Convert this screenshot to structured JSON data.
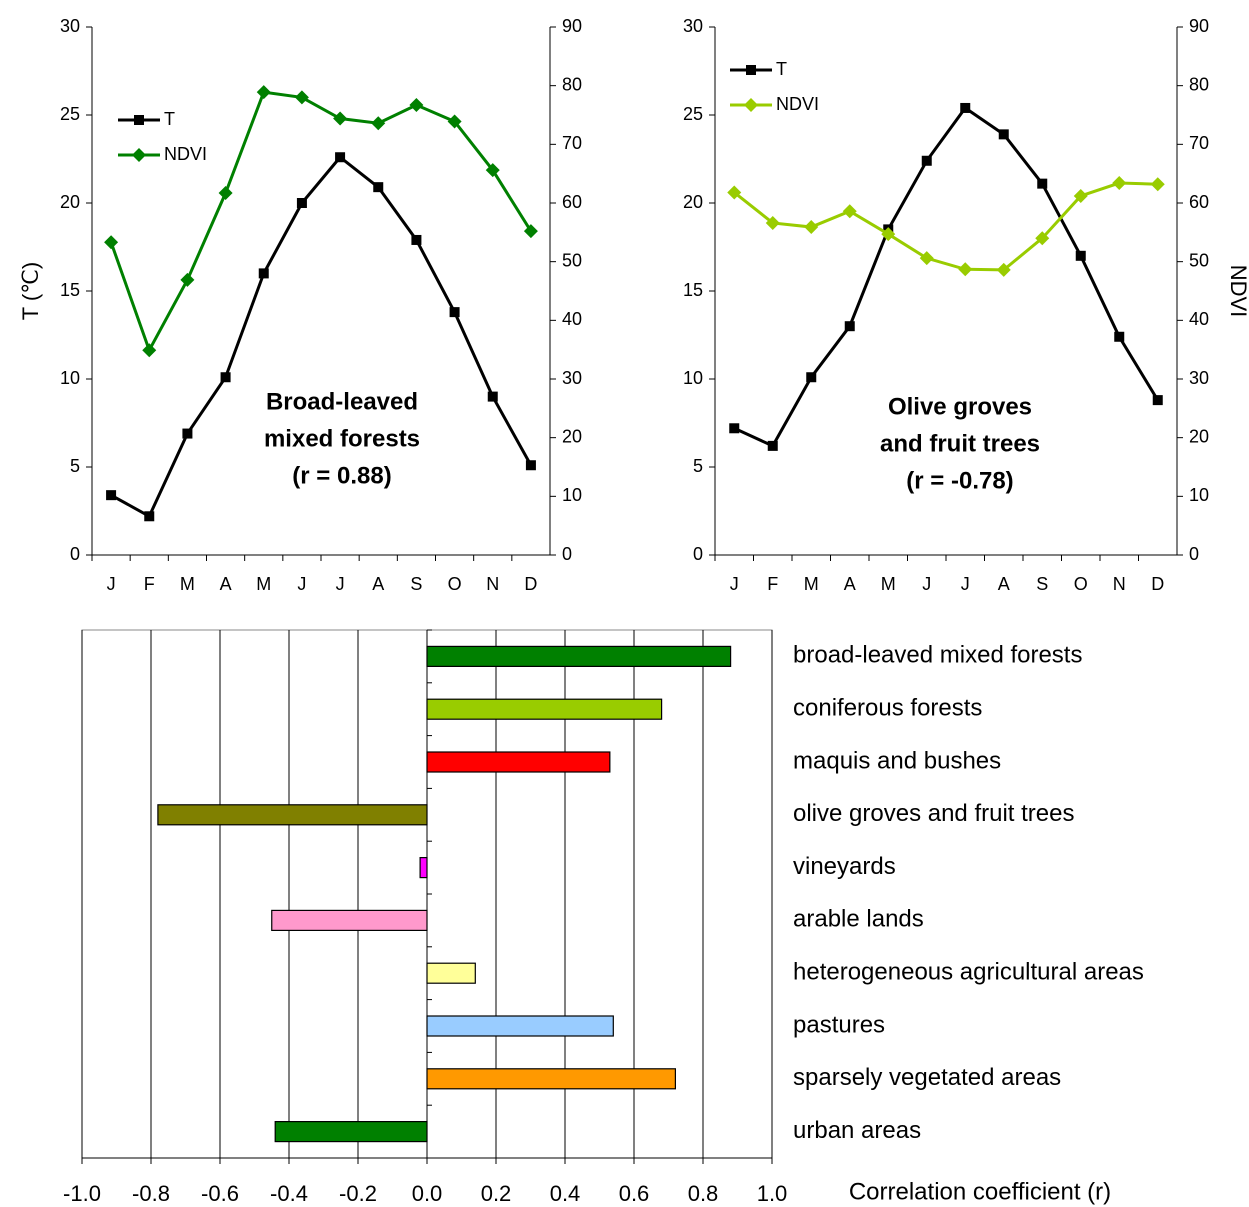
{
  "chart_data": [
    {
      "type": "line",
      "ylabel": "T (℃)",
      "annotation": [
        "Broad-leaved",
        "mixed forests",
        "(r = 0.88)"
      ],
      "categories": [
        "J",
        "F",
        "M",
        "A",
        "M",
        "J",
        "J",
        "A",
        "S",
        "O",
        "N",
        "D"
      ],
      "series": [
        {
          "name": "T",
          "color": "#000000",
          "marker": "square",
          "values": [
            3.4,
            2.2,
            6.9,
            10.1,
            16.0,
            20.0,
            22.6,
            20.9,
            17.9,
            13.8,
            9.0,
            5.1
          ]
        },
        {
          "name": "NDVI",
          "color": "#008000",
          "marker": "diamond",
          "axis": "y2",
          "values": [
            53.3,
            34.9,
            46.9,
            61.7,
            78.9,
            78.0,
            74.4,
            73.6,
            76.7,
            73.9,
            65.6,
            55.2
          ]
        }
      ],
      "ylim": [
        0,
        30
      ],
      "yticks": [
        0,
        5,
        10,
        15,
        20,
        25,
        30
      ],
      "y2lim": [
        0,
        90
      ],
      "y2ticks": [
        0,
        10,
        20,
        30,
        40,
        50,
        60,
        70,
        80,
        90
      ]
    },
    {
      "type": "line",
      "y2label": "NDVI",
      "annotation": [
        "Olive groves",
        "and fruit trees",
        "(r = -0.78)"
      ],
      "categories": [
        "J",
        "F",
        "M",
        "A",
        "M",
        "J",
        "J",
        "A",
        "S",
        "O",
        "N",
        "D"
      ],
      "series": [
        {
          "name": "T",
          "color": "#000000",
          "marker": "square",
          "values": [
            7.2,
            6.2,
            10.1,
            13.0,
            18.5,
            22.4,
            25.4,
            23.9,
            21.1,
            17.0,
            12.4,
            8.8
          ]
        },
        {
          "name": "NDVI",
          "color": "#99cc00",
          "marker": "diamond",
          "axis": "y2",
          "values": [
            61.8,
            56.6,
            55.9,
            58.6,
            54.7,
            50.6,
            48.7,
            48.6,
            54.0,
            61.2,
            63.4,
            63.2
          ]
        }
      ],
      "ylim": [
        0,
        30
      ],
      "yticks": [
        0,
        5,
        10,
        15,
        20,
        25,
        30
      ],
      "y2lim": [
        0,
        90
      ],
      "y2ticks": [
        0,
        10,
        20,
        30,
        40,
        50,
        60,
        70,
        80,
        90
      ]
    },
    {
      "type": "hbar",
      "xlabel": "Correlation coefficient (r)",
      "categories": [
        "broad-leaved mixed forests",
        "coniferous forests",
        "maquis and bushes",
        "olive groves and fruit trees",
        "vineyards",
        "arable lands",
        "heterogeneous agricultural areas",
        "pastures",
        "sparsely vegetated areas",
        "urban areas"
      ],
      "values": [
        0.88,
        0.68,
        0.53,
        -0.78,
        -0.02,
        -0.45,
        0.14,
        0.54,
        0.72,
        -0.44
      ],
      "colors": [
        "#008000",
        "#99cc00",
        "#ff0000",
        "#808000",
        "#ff00ff",
        "#ff99cc",
        "#ffff99",
        "#99ccff",
        "#ff9900",
        "#008000"
      ],
      "xlim": [
        -1.0,
        1.0
      ],
      "xticks": [
        {
          "value": -1.0,
          "label": "-1.0"
        },
        -0.8,
        -0.6,
        -0.4,
        -0.2,
        {
          "value": 0.0,
          "label": "0.0"
        },
        0.2,
        0.4,
        0.6,
        0.8,
        {
          "value": 1.0,
          "label": "1.0"
        }
      ],
      "grid": true
    }
  ]
}
